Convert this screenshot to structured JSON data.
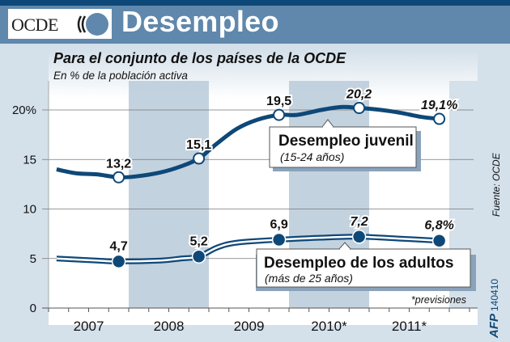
{
  "header": {
    "logo_text": "OCDE",
    "title": "Desempleo"
  },
  "subtitle": "Para el conjunto de los países de la OCDE",
  "unit_label": "En % de la población activa",
  "source": "Fuente: OCDE",
  "credit": {
    "agency": "AFP",
    "code": "140410"
  },
  "colors": {
    "header_bar": "#0e4878",
    "header_bg": "#5f88ac",
    "line_color": "#0e4878",
    "shade_band": "#b8cad9",
    "background": "#d4e0ea"
  },
  "chart_data": {
    "type": "line",
    "title": "Desempleo",
    "subtitle": "Para el conjunto de los países de la OCDE",
    "ylabel": "En % de la población activa",
    "xlabel": "",
    "categories": [
      "2007",
      "2008",
      "2009",
      "2010*",
      "2011*"
    ],
    "x_range": [
      2007.0,
      2012.0
    ],
    "ylim": [
      0,
      20
    ],
    "y_ticks": [
      0,
      5,
      10,
      15,
      20
    ],
    "y_tick_labels": [
      "0",
      "5",
      "10",
      "15",
      "20%"
    ],
    "grid": true,
    "shaded_years": [
      "2008",
      "2010*"
    ],
    "footnote": "*previsiones",
    "series": [
      {
        "name": "Desempleo juvenil",
        "sub": "(15-24 años)",
        "style": "solid",
        "x": [
          2007.1,
          2007.35,
          2007.6,
          2007.875,
          2008.1,
          2008.4,
          2008.65,
          2008.875,
          2009.1,
          2009.35,
          2009.6,
          2009.875,
          2010.1,
          2010.4,
          2010.65,
          2010.875,
          2011.15,
          2011.4,
          2011.65,
          2011.875
        ],
        "values": [
          14.0,
          13.6,
          13.5,
          13.2,
          13.3,
          13.7,
          14.3,
          15.1,
          16.6,
          18.1,
          19.0,
          19.5,
          19.5,
          20.0,
          20.3,
          20.2,
          20.0,
          19.7,
          19.3,
          19.1
        ],
        "markers": [
          {
            "x": 2007.875,
            "value": 13.2,
            "label": "13,2"
          },
          {
            "x": 2008.875,
            "value": 15.1,
            "label": "15,1"
          },
          {
            "x": 2009.875,
            "value": 19.5,
            "label": "19,5"
          },
          {
            "x": 2010.875,
            "value": 20.2,
            "label": "20,2"
          },
          {
            "x": 2011.875,
            "value": 19.1,
            "label": "19,1%"
          }
        ]
      },
      {
        "name": "Desempleo de los adultos",
        "sub": "(más de 25 años)",
        "style": "double",
        "x": [
          2007.1,
          2007.6,
          2007.875,
          2008.4,
          2008.65,
          2008.875,
          2009.1,
          2009.35,
          2009.875,
          2010.4,
          2010.875,
          2011.4,
          2011.875
        ],
        "values": [
          5.0,
          4.8,
          4.7,
          4.8,
          5.0,
          5.2,
          6.1,
          6.6,
          6.9,
          7.1,
          7.2,
          7.0,
          6.8
        ],
        "markers": [
          {
            "x": 2007.875,
            "value": 4.7,
            "label": "4,7"
          },
          {
            "x": 2008.875,
            "value": 5.2,
            "label": "5,2"
          },
          {
            "x": 2009.875,
            "value": 6.9,
            "label": "6,9"
          },
          {
            "x": 2010.875,
            "value": 7.2,
            "label": "7,2"
          },
          {
            "x": 2011.875,
            "value": 6.8,
            "label": "6,8%"
          }
        ]
      }
    ]
  }
}
